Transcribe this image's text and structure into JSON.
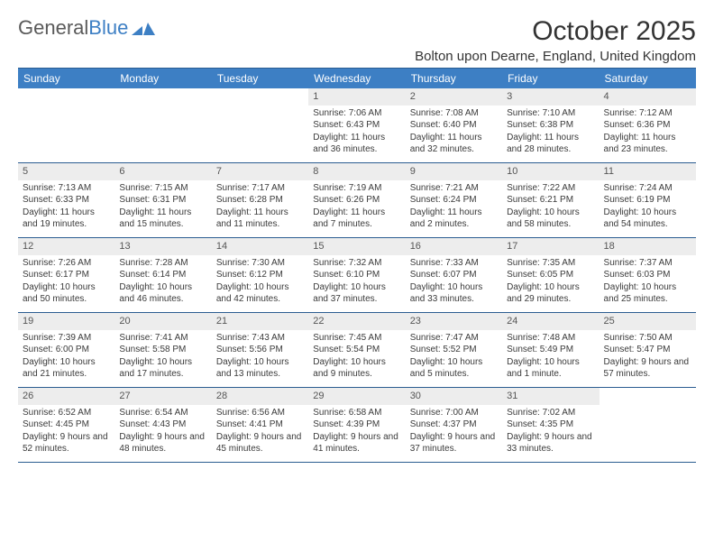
{
  "logo": {
    "part1": "General",
    "part2": "Blue"
  },
  "title": "October 2025",
  "location": "Bolton upon Dearne, England, United Kingdom",
  "colors": {
    "header_bg": "#3d7fc4",
    "header_text": "#ffffff",
    "border": "#2b5d91",
    "daynum_bg": "#ededed",
    "text": "#3a3a3a"
  },
  "day_names": [
    "Sunday",
    "Monday",
    "Tuesday",
    "Wednesday",
    "Thursday",
    "Friday",
    "Saturday"
  ],
  "weeks": [
    [
      {
        "n": "",
        "lines": []
      },
      {
        "n": "",
        "lines": []
      },
      {
        "n": "",
        "lines": []
      },
      {
        "n": "1",
        "lines": [
          "Sunrise: 7:06 AM",
          "Sunset: 6:43 PM",
          "Daylight: 11 hours and 36 minutes."
        ]
      },
      {
        "n": "2",
        "lines": [
          "Sunrise: 7:08 AM",
          "Sunset: 6:40 PM",
          "Daylight: 11 hours and 32 minutes."
        ]
      },
      {
        "n": "3",
        "lines": [
          "Sunrise: 7:10 AM",
          "Sunset: 6:38 PM",
          "Daylight: 11 hours and 28 minutes."
        ]
      },
      {
        "n": "4",
        "lines": [
          "Sunrise: 7:12 AM",
          "Sunset: 6:36 PM",
          "Daylight: 11 hours and 23 minutes."
        ]
      }
    ],
    [
      {
        "n": "5",
        "lines": [
          "Sunrise: 7:13 AM",
          "Sunset: 6:33 PM",
          "Daylight: 11 hours and 19 minutes."
        ]
      },
      {
        "n": "6",
        "lines": [
          "Sunrise: 7:15 AM",
          "Sunset: 6:31 PM",
          "Daylight: 11 hours and 15 minutes."
        ]
      },
      {
        "n": "7",
        "lines": [
          "Sunrise: 7:17 AM",
          "Sunset: 6:28 PM",
          "Daylight: 11 hours and 11 minutes."
        ]
      },
      {
        "n": "8",
        "lines": [
          "Sunrise: 7:19 AM",
          "Sunset: 6:26 PM",
          "Daylight: 11 hours and 7 minutes."
        ]
      },
      {
        "n": "9",
        "lines": [
          "Sunrise: 7:21 AM",
          "Sunset: 6:24 PM",
          "Daylight: 11 hours and 2 minutes."
        ]
      },
      {
        "n": "10",
        "lines": [
          "Sunrise: 7:22 AM",
          "Sunset: 6:21 PM",
          "Daylight: 10 hours and 58 minutes."
        ]
      },
      {
        "n": "11",
        "lines": [
          "Sunrise: 7:24 AM",
          "Sunset: 6:19 PM",
          "Daylight: 10 hours and 54 minutes."
        ]
      }
    ],
    [
      {
        "n": "12",
        "lines": [
          "Sunrise: 7:26 AM",
          "Sunset: 6:17 PM",
          "Daylight: 10 hours and 50 minutes."
        ]
      },
      {
        "n": "13",
        "lines": [
          "Sunrise: 7:28 AM",
          "Sunset: 6:14 PM",
          "Daylight: 10 hours and 46 minutes."
        ]
      },
      {
        "n": "14",
        "lines": [
          "Sunrise: 7:30 AM",
          "Sunset: 6:12 PM",
          "Daylight: 10 hours and 42 minutes."
        ]
      },
      {
        "n": "15",
        "lines": [
          "Sunrise: 7:32 AM",
          "Sunset: 6:10 PM",
          "Daylight: 10 hours and 37 minutes."
        ]
      },
      {
        "n": "16",
        "lines": [
          "Sunrise: 7:33 AM",
          "Sunset: 6:07 PM",
          "Daylight: 10 hours and 33 minutes."
        ]
      },
      {
        "n": "17",
        "lines": [
          "Sunrise: 7:35 AM",
          "Sunset: 6:05 PM",
          "Daylight: 10 hours and 29 minutes."
        ]
      },
      {
        "n": "18",
        "lines": [
          "Sunrise: 7:37 AM",
          "Sunset: 6:03 PM",
          "Daylight: 10 hours and 25 minutes."
        ]
      }
    ],
    [
      {
        "n": "19",
        "lines": [
          "Sunrise: 7:39 AM",
          "Sunset: 6:00 PM",
          "Daylight: 10 hours and 21 minutes."
        ]
      },
      {
        "n": "20",
        "lines": [
          "Sunrise: 7:41 AM",
          "Sunset: 5:58 PM",
          "Daylight: 10 hours and 17 minutes."
        ]
      },
      {
        "n": "21",
        "lines": [
          "Sunrise: 7:43 AM",
          "Sunset: 5:56 PM",
          "Daylight: 10 hours and 13 minutes."
        ]
      },
      {
        "n": "22",
        "lines": [
          "Sunrise: 7:45 AM",
          "Sunset: 5:54 PM",
          "Daylight: 10 hours and 9 minutes."
        ]
      },
      {
        "n": "23",
        "lines": [
          "Sunrise: 7:47 AM",
          "Sunset: 5:52 PM",
          "Daylight: 10 hours and 5 minutes."
        ]
      },
      {
        "n": "24",
        "lines": [
          "Sunrise: 7:48 AM",
          "Sunset: 5:49 PM",
          "Daylight: 10 hours and 1 minute."
        ]
      },
      {
        "n": "25",
        "lines": [
          "Sunrise: 7:50 AM",
          "Sunset: 5:47 PM",
          "Daylight: 9 hours and 57 minutes."
        ]
      }
    ],
    [
      {
        "n": "26",
        "lines": [
          "Sunrise: 6:52 AM",
          "Sunset: 4:45 PM",
          "Daylight: 9 hours and 52 minutes."
        ]
      },
      {
        "n": "27",
        "lines": [
          "Sunrise: 6:54 AM",
          "Sunset: 4:43 PM",
          "Daylight: 9 hours and 48 minutes."
        ]
      },
      {
        "n": "28",
        "lines": [
          "Sunrise: 6:56 AM",
          "Sunset: 4:41 PM",
          "Daylight: 9 hours and 45 minutes."
        ]
      },
      {
        "n": "29",
        "lines": [
          "Sunrise: 6:58 AM",
          "Sunset: 4:39 PM",
          "Daylight: 9 hours and 41 minutes."
        ]
      },
      {
        "n": "30",
        "lines": [
          "Sunrise: 7:00 AM",
          "Sunset: 4:37 PM",
          "Daylight: 9 hours and 37 minutes."
        ]
      },
      {
        "n": "31",
        "lines": [
          "Sunrise: 7:02 AM",
          "Sunset: 4:35 PM",
          "Daylight: 9 hours and 33 minutes."
        ]
      },
      {
        "n": "",
        "lines": []
      }
    ]
  ]
}
